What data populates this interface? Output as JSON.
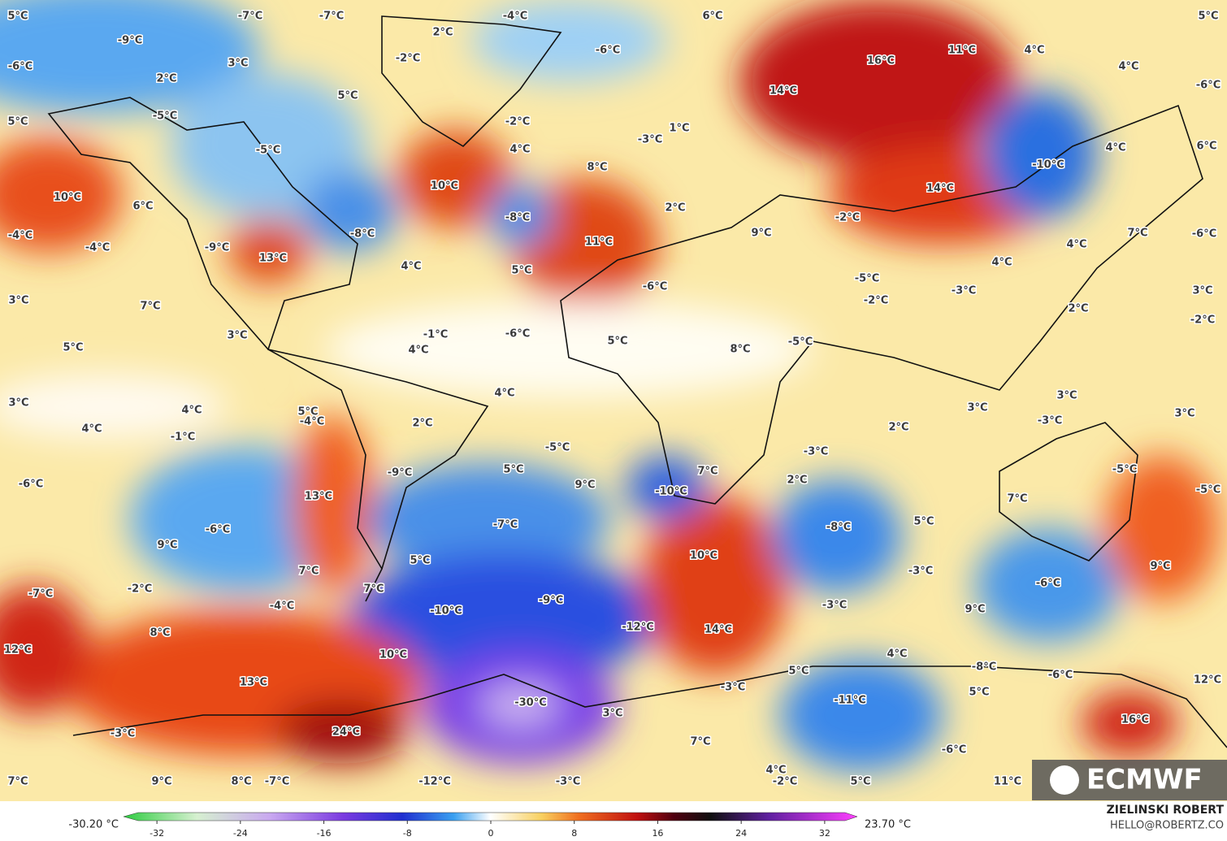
{
  "map": {
    "labels": [
      "5°C",
      "-7°C",
      "-7°C",
      "-4°C",
      "6°C",
      "5°C",
      "-9°C",
      "2°C",
      "-6°C",
      "-2°C",
      "16°C",
      "11°C",
      "4°C",
      "-6°C",
      "3°C",
      "2°C",
      "4°C",
      "-6°C",
      "5°C",
      "14°C",
      "5°C",
      "-5°C",
      "-2°C",
      "1°C",
      "-3°C",
      "4°C",
      "6°C",
      "-5°C",
      "4°C",
      "-10°C",
      "8°C",
      "10°C",
      "14°C",
      "10°C",
      "6°C",
      "2°C",
      "-8°C",
      "-2°C",
      "-4°C",
      "-4°C",
      "-9°C",
      "13°C",
      "-8°C",
      "11°C",
      "9°C",
      "7°C",
      "-6°C",
      "4°C",
      "4°C",
      "5°C",
      "4°C",
      "-5°C",
      "-6°C",
      "-3°C",
      "3°C",
      "3°C",
      "7°C",
      "-2°C",
      "2°C",
      "-2°C",
      "3°C",
      "-1°C",
      "-6°C",
      "5°C",
      "-5°C",
      "5°C",
      "4°C",
      "8°C",
      "3°C",
      "4°C",
      "3°C",
      "3°C",
      "-3°C",
      "3°C",
      "4°C",
      "5°C",
      "-4°C",
      "2°C",
      "2°C",
      "4°C",
      "-1°C",
      "-5°C",
      "-3°C",
      "5°C",
      "-9°C",
      "7°C",
      "2°C",
      "-5°C",
      "-5°C",
      "-6°C",
      "9°C",
      "-10°C",
      "13°C",
      "7°C",
      "-7°C",
      "-6°C",
      "-8°C",
      "5°C",
      "9°C",
      "10°C",
      "5°C",
      "7°C",
      "-3°C",
      "9°C",
      "-6°C",
      "-7°C",
      "-2°C",
      "7°C",
      "-9°C",
      "-4°C",
      "-10°C",
      "-3°C",
      "9°C",
      "-12°C",
      "14°C",
      "8°C",
      "12°C",
      "10°C",
      "4°C",
      "-8°C",
      "5°C",
      "-6°C",
      "13°C",
      "-3°C",
      "12°C",
      "5°C",
      "-30°C",
      "-11°C",
      "3°C",
      "16°C",
      "-3°C",
      "24°C",
      "7°C",
      "-6°C",
      "4°C",
      "-2°C",
      "5°C",
      "11°C",
      "7°C",
      "9°C",
      "8°C",
      "-7°C",
      "-12°C",
      "-3°C"
    ]
  },
  "colorbar": {
    "min_label": "-30.20 °C",
    "max_label": "23.70 °C",
    "ticks": [
      -32,
      -24,
      -16,
      -8,
      0,
      8,
      16,
      24,
      32
    ]
  },
  "credit": {
    "author": "ZIELINSKI ROBERT",
    "email": "HELLO@ROBERTZ.CO"
  },
  "logo": {
    "text": "ECMWF"
  }
}
